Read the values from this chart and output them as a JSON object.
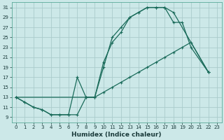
{
  "xlabel": "Humidex (Indice chaleur)",
  "bg_color": "#cce8e8",
  "line_color": "#1a6b5a",
  "grid_color": "#aacccc",
  "xlim": [
    -0.5,
    23.5
  ],
  "ylim": [
    8,
    32
  ],
  "xticks": [
    0,
    1,
    2,
    3,
    4,
    5,
    6,
    7,
    8,
    9,
    10,
    11,
    12,
    13,
    14,
    15,
    16,
    17,
    18,
    19,
    20,
    21,
    22,
    23
  ],
  "yticks": [
    9,
    11,
    13,
    15,
    17,
    19,
    21,
    23,
    25,
    27,
    29,
    31
  ],
  "curve1_x": [
    0,
    1,
    2,
    3,
    4,
    5,
    6,
    7,
    8,
    9,
    10,
    11,
    12,
    13,
    14,
    15,
    16,
    17,
    18,
    22
  ],
  "curve1_y": [
    13,
    12,
    11,
    10.5,
    9.5,
    9.5,
    9.5,
    9.5,
    13,
    13,
    20,
    24,
    26,
    29,
    30,
    31,
    31,
    31,
    30,
    18
  ],
  "curve2_x": [
    0,
    9,
    10,
    11,
    12,
    13,
    14,
    15,
    16,
    17,
    18,
    19,
    20,
    22
  ],
  "curve2_y": [
    13,
    13,
    14,
    15,
    16,
    17,
    18,
    19,
    20,
    21,
    22,
    23,
    24,
    18
  ],
  "curve3_x": [
    0,
    1,
    2,
    3,
    4,
    5,
    6,
    7,
    8,
    9,
    10,
    11,
    12,
    13,
    14,
    15,
    16,
    17,
    18,
    19,
    20,
    22
  ],
  "curve3_y": [
    13,
    12,
    11,
    10.5,
    9.5,
    9.5,
    9.5,
    17,
    13,
    13,
    19,
    25,
    27,
    29,
    30,
    31,
    31,
    31,
    28,
    28,
    23,
    18
  ]
}
